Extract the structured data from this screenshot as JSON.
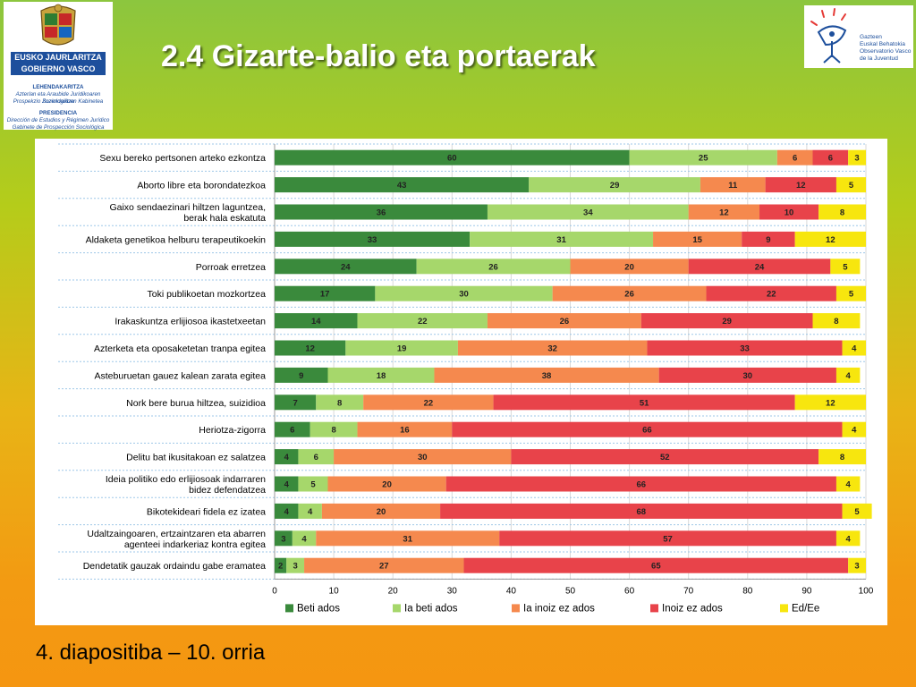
{
  "header": {
    "title": "2.4 Gizarte-balio eta portaerak"
  },
  "logo_left": {
    "line1": "EUSKO JAURLARITZA",
    "line2": "GOBIERNO VASCO",
    "dept_eu": "LEHENDAKARITZA",
    "sub_eu1": "Azterlan eta Araubide Juridikoaren Zuzendaritza",
    "sub_eu2": "Prospekzio Soziologikoen Kabinetea",
    "dept_es": "PRESIDENCIA",
    "sub_es1": "Dirección de Estudios y Régimen Jurídico",
    "sub_es2": "Gabinete de Prospección Sociológica"
  },
  "logo_right": {
    "line1": "Gazteen",
    "line2": "Euskal Behatokia",
    "line3": "Observatorio Vasco",
    "line4": "de la Juventud"
  },
  "footer": {
    "text": "4. diapositiba – 10. orria"
  },
  "chart_data": {
    "type": "bar",
    "orientation": "horizontal",
    "stacked": true,
    "xlim": [
      0,
      100
    ],
    "xticks": [
      0,
      10,
      20,
      30,
      40,
      50,
      60,
      70,
      80,
      90,
      100
    ],
    "grid": true,
    "legend_position": "bottom",
    "categories": [
      "Sexu bereko pertsonen arteko ezkontza",
      "Aborto libre eta borondatezkoa",
      "Gaixo sendaezinari hiltzen laguntzea, berak hala eskatuta",
      "Aldaketa genetikoa helburu terapeutikoekin",
      "Porroak erretzea",
      "Toki publikoetan mozkortzea",
      "Irakaskuntza erlijiosoa ikastetxeetan",
      "Azterketa eta oposaketetan tranpa egitea",
      "Asteburuetan gauez kalean zarata egitea",
      "Nork bere burua hiltzea, suizidioa",
      "Heriotza-zigorra",
      "Delitu bat ikusitakoan ez salatzea",
      "Ideia politiko edo erlijiosoak indarraren bidez defendatzea",
      "Bikotekideari fidela ez izatea",
      "Udaltzaingoaren, ertzaintzaren eta abarren agenteei indarkeriaz kontra egitea",
      "Dendetatik gauzak ordaindu gabe eramatea"
    ],
    "series": [
      {
        "name": "Beti ados",
        "color": "#3a8a3c",
        "values": [
          60,
          43,
          36,
          33,
          24,
          17,
          14,
          12,
          9,
          7,
          6,
          4,
          4,
          4,
          3,
          2
        ]
      },
      {
        "name": "Ia beti ados",
        "color": "#a6d76b",
        "values": [
          25,
          29,
          34,
          31,
          26,
          30,
          22,
          19,
          18,
          8,
          8,
          6,
          5,
          4,
          4,
          3
        ]
      },
      {
        "name": "Ia inoiz ez ados",
        "color": "#f5894e",
        "values": [
          6,
          11,
          12,
          15,
          20,
          26,
          26,
          32,
          38,
          22,
          16,
          30,
          20,
          20,
          31,
          27
        ]
      },
      {
        "name": "Inoiz ez ados",
        "color": "#e8434a",
        "values": [
          6,
          12,
          10,
          9,
          24,
          22,
          29,
          33,
          30,
          51,
          66,
          52,
          66,
          68,
          57,
          65
        ]
      },
      {
        "name": "Ed/Ee",
        "color": "#f7e60e",
        "values": [
          3,
          5,
          8,
          12,
          5,
          5,
          8,
          4,
          4,
          12,
          4,
          8,
          4,
          5,
          4,
          3
        ]
      }
    ]
  }
}
